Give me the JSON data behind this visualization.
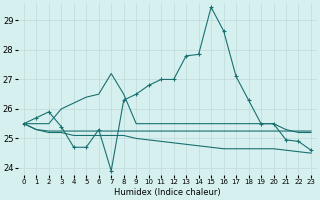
{
  "xlabel": "Humidex (Indice chaleur)",
  "bg_color": "#d6f0f0",
  "line_color": "#1a7070",
  "grid_color": "#c0d8d8",
  "xlim": [
    -0.5,
    23.5
  ],
  "ylim": [
    23.75,
    29.6
  ],
  "yticks": [
    24,
    25,
    26,
    27,
    28,
    29
  ],
  "xticks": [
    0,
    1,
    2,
    3,
    4,
    5,
    6,
    7,
    8,
    9,
    10,
    11,
    12,
    13,
    14,
    15,
    16,
    17,
    18,
    19,
    20,
    21,
    22,
    23
  ],
  "line1_x": [
    0,
    1,
    2,
    3,
    4,
    5,
    6,
    7,
    8,
    9,
    10,
    11,
    12,
    13,
    14,
    15,
    16,
    17,
    18,
    19,
    20,
    21,
    22,
    23
  ],
  "line1_y": [
    25.5,
    25.7,
    25.9,
    25.4,
    24.7,
    24.7,
    25.3,
    23.9,
    26.3,
    26.5,
    26.8,
    27.0,
    27.0,
    27.8,
    27.85,
    29.45,
    28.65,
    27.1,
    26.3,
    25.5,
    25.5,
    24.95,
    24.9,
    24.6
  ],
  "line2_x": [
    0,
    1,
    2,
    3,
    4,
    5,
    6,
    7,
    8,
    9,
    10,
    11,
    12,
    13,
    14,
    15,
    16,
    17,
    18,
    19,
    20,
    21,
    22,
    23
  ],
  "line2_y": [
    25.5,
    25.5,
    25.5,
    26.0,
    26.2,
    26.4,
    26.5,
    27.2,
    26.5,
    25.5,
    25.5,
    25.5,
    25.5,
    25.5,
    25.5,
    25.5,
    25.5,
    25.5,
    25.5,
    25.5,
    25.5,
    25.3,
    25.2,
    25.2
  ],
  "line3_x": [
    0,
    1,
    2,
    3,
    4,
    5,
    6,
    7,
    8,
    9,
    10,
    11,
    12,
    13,
    14,
    15,
    16,
    17,
    18,
    19,
    20,
    21,
    22,
    23
  ],
  "line3_y": [
    25.5,
    25.3,
    25.25,
    25.25,
    25.25,
    25.25,
    25.25,
    25.25,
    25.25,
    25.25,
    25.25,
    25.25,
    25.25,
    25.25,
    25.25,
    25.25,
    25.25,
    25.25,
    25.25,
    25.25,
    25.25,
    25.25,
    25.25,
    25.25
  ],
  "line4_x": [
    0,
    1,
    2,
    3,
    4,
    5,
    6,
    7,
    8,
    9,
    10,
    11,
    12,
    13,
    14,
    15,
    16,
    17,
    18,
    19,
    20,
    21,
    22,
    23
  ],
  "line4_y": [
    25.5,
    25.3,
    25.2,
    25.2,
    25.1,
    25.1,
    25.1,
    25.1,
    25.1,
    25.0,
    24.95,
    24.9,
    24.85,
    24.8,
    24.75,
    24.7,
    24.65,
    24.65,
    24.65,
    24.65,
    24.65,
    24.6,
    24.55,
    24.5
  ]
}
